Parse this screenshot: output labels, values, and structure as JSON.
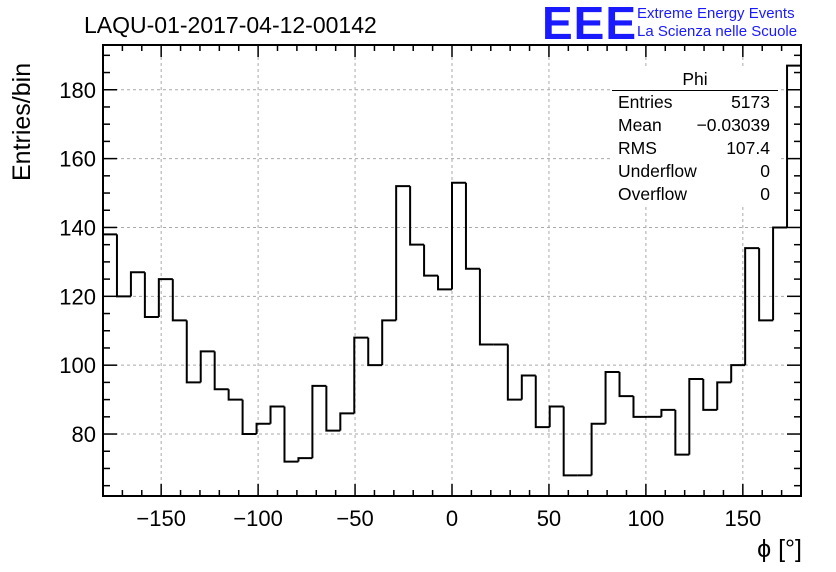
{
  "header": {
    "title": "LAQU-01-2017-04-12-00142",
    "logo_text": "EEE",
    "org_line1": "Extreme Energy Events",
    "org_line2": "La Scienza nelle Scuole"
  },
  "stats_box": {
    "name": "Phi",
    "rows": [
      {
        "label": "Entries",
        "value": "5173"
      },
      {
        "label": "Mean",
        "value": "−0.03039"
      },
      {
        "label": "RMS",
        "value": "107.4"
      },
      {
        "label": "Underflow",
        "value": "0"
      },
      {
        "label": "Overflow",
        "value": "0"
      }
    ]
  },
  "colors": {
    "logo": "#1a1aff",
    "line": "#000000",
    "grid": "#aaaaaa"
  },
  "chart_data": {
    "type": "histogram",
    "xlabel": "ϕ [°]",
    "ylabel": "Entries/bin",
    "xlim": [
      -180,
      180
    ],
    "ylim": [
      62,
      193
    ],
    "bin_width": 7.2,
    "x_ticks": [
      -150,
      -100,
      -50,
      0,
      50,
      100,
      150
    ],
    "x_tick_labels": [
      "−150",
      "−100",
      "−50",
      "0",
      "50",
      "100",
      "150"
    ],
    "y_ticks": [
      80,
      100,
      120,
      140,
      160,
      180
    ],
    "y_tick_labels": [
      "80",
      "100",
      "120",
      "140",
      "160",
      "180"
    ],
    "grid": true,
    "values": [
      138,
      120,
      127,
      114,
      125,
      113,
      95,
      104,
      93,
      90,
      80,
      83,
      88,
      72,
      73,
      94,
      81,
      86,
      108,
      100,
      113,
      152,
      135,
      126,
      122,
      153,
      128,
      106,
      106,
      90,
      97,
      82,
      88,
      68,
      68,
      83,
      98,
      91,
      85,
      85,
      87,
      74,
      96,
      87,
      95,
      100,
      134,
      113,
      140,
      187
    ]
  }
}
